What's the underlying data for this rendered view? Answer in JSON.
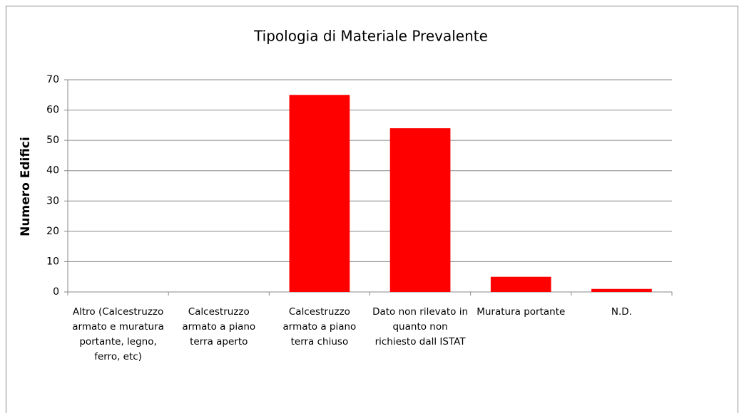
{
  "chart_data": {
    "type": "bar",
    "title": "Tipologia di Materiale Prevalente",
    "ylabel": "Numero Edifici",
    "categories": [
      "Altro (Calcestruzzo armato e muratura portante, legno, ferro, etc)",
      "Calcestruzzo armato a piano terra aperto",
      "Calcestruzzo armato a piano terra chiuso",
      "Dato non rilevato in quanto non richiesto dall ISTAT",
      "Muratura portante",
      "N.D."
    ],
    "values": [
      0,
      0,
      65,
      54,
      5,
      1
    ],
    "color": "#ff0000",
    "ylim": [
      0,
      70
    ],
    "yticks": [
      0,
      10,
      20,
      30,
      40,
      50,
      60,
      70
    ],
    "grid": true
  }
}
